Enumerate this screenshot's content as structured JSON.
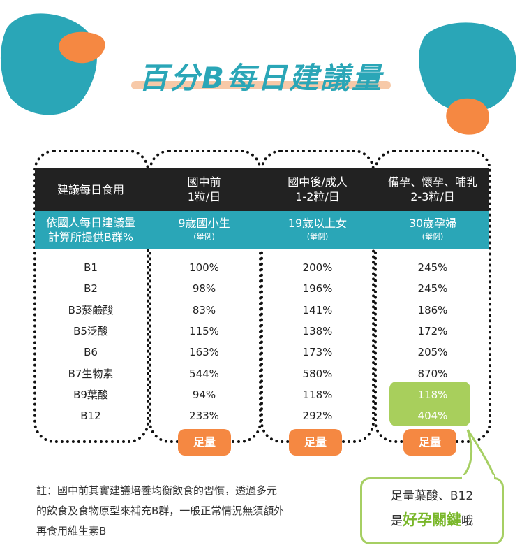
{
  "title": "百分B每日建議量",
  "header_row": {
    "label": "建議每日食用",
    "columns": [
      {
        "line1": "國中前",
        "line2": "1粒/日"
      },
      {
        "line1": "國中後/成人",
        "line2": "1-2粒/日"
      },
      {
        "line1": "備孕、懷孕、哺乳",
        "line2": "2-3粒/日"
      }
    ]
  },
  "subheader_row": {
    "label_line1": "依國人每日建議量",
    "label_line2": "計算所提供B群%",
    "columns": [
      {
        "name": "9歲國小生",
        "note": "(舉例)"
      },
      {
        "name": "19歲以上女",
        "note": "(舉例)"
      },
      {
        "name": "30歲孕婦",
        "note": "(舉例)"
      }
    ]
  },
  "rows": [
    {
      "name": "B1",
      "values": [
        "100%",
        "200%",
        "245%"
      ]
    },
    {
      "name": "B2",
      "values": [
        "98%",
        "196%",
        "245%"
      ]
    },
    {
      "name": "B3菸鹼酸",
      "values": [
        "83%",
        "141%",
        "186%"
      ]
    },
    {
      "name": "B5泛酸",
      "values": [
        "115%",
        "138%",
        "172%"
      ]
    },
    {
      "name": "B6",
      "values": [
        "163%",
        "173%",
        "205%"
      ]
    },
    {
      "name": "B7生物素",
      "values": [
        "544%",
        "580%",
        "870%"
      ]
    },
    {
      "name": "B9葉酸",
      "values": [
        "94%",
        "118%",
        "118%"
      ]
    },
    {
      "name": "B12",
      "values": [
        "233%",
        "292%",
        "404%"
      ]
    }
  ],
  "badges": [
    "足量",
    "足量",
    "足量"
  ],
  "note": {
    "line1": "註：國中前其實建議培養均衡飲食的習慣，透過多元",
    "line2": "的飲食及食物原型來補充B群，一般正常情況無須額外",
    "line3": "再食用維生素B"
  },
  "callout": {
    "line1": "足量葉酸、B12",
    "prefix": "是",
    "highlight": "好孕關鍵",
    "suffix": "哦"
  },
  "colors": {
    "teal": "#2aa6b7",
    "orange": "#f58842",
    "green": "#a8cf5c",
    "dark": "#222222"
  }
}
